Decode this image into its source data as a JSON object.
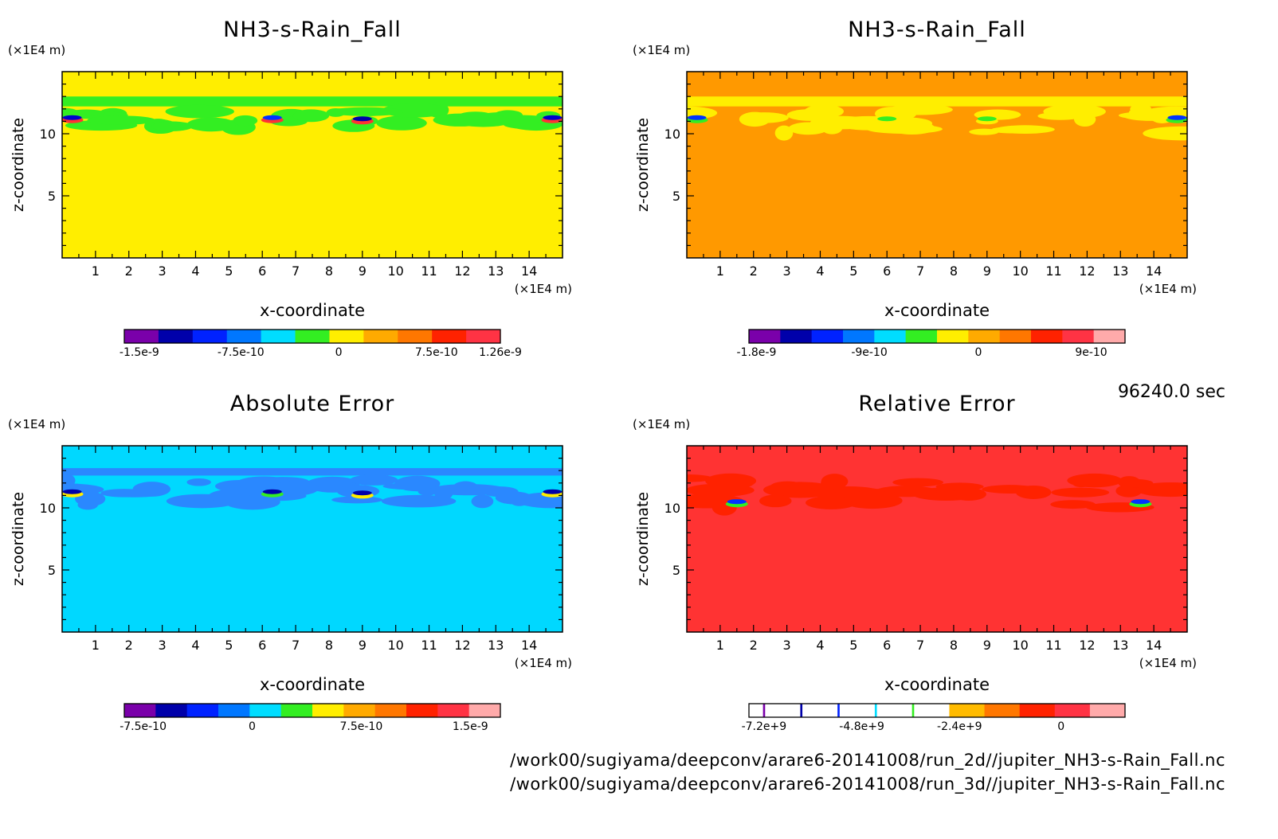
{
  "time_label": "96240.0 sec",
  "footer": {
    "path_2d": "/work00/sugiyama/deepconv/arare6-20141008/run_2d//jupiter_NH3-s-Rain_Fall.nc",
    "path_3d": "/work00/sugiyama/deepconv/arare6-20141008/run_3d//jupiter_NH3-s-Rain_Fall.nc"
  },
  "chart_data": [
    {
      "type": "heatmap",
      "title": "NH3-s-Rain_Fall",
      "xlabel": "x-coordinate",
      "ylabel": "z-coordinate",
      "x_unit": "(×1E4 m)",
      "y_unit": "(×1E4 m)",
      "xlim": [
        0,
        15
      ],
      "ylim": [
        0,
        15
      ],
      "x_ticks": [
        "1",
        "2",
        "3",
        "4",
        "5",
        "6",
        "7",
        "8",
        "9",
        "10",
        "11",
        "12",
        "13",
        "14"
      ],
      "y_ticks": [
        "5",
        "10"
      ],
      "background_color": "#ffee00",
      "bands": [
        {
          "z": [
            12.2,
            13.0
          ],
          "color": "#33ee22"
        }
      ],
      "patches_color": "#33ee22",
      "patches_z": [
        10.5,
        12.0
      ],
      "hotspots": [
        {
          "x": 0.3,
          "z": 11.3,
          "colors": [
            "#0000cc",
            "#ff3333"
          ]
        },
        {
          "x": 6.3,
          "z": 11.3,
          "colors": [
            "#0033ff",
            "#ff3333"
          ]
        },
        {
          "x": 9.0,
          "z": 11.2,
          "colors": [
            "#0000aa",
            "#ff3333"
          ]
        },
        {
          "x": 14.7,
          "z": 11.3,
          "colors": [
            "#0000cc",
            "#ff3333"
          ]
        }
      ],
      "colorbar": {
        "colors": [
          "#7a00aa",
          "#0000aa",
          "#0022ff",
          "#0077ff",
          "#00ddff",
          "#33ee22",
          "#ffee00",
          "#ffaa00",
          "#ff7700",
          "#ff2200",
          "#ff3344"
        ],
        "tick_labels": [
          "-1.5e-9",
          "-7.5e-10",
          "0",
          "7.5e-10",
          "1.26e-9"
        ],
        "tick_positions": [
          0.04,
          0.31,
          0.57,
          0.83,
          1.0
        ]
      }
    },
    {
      "type": "heatmap",
      "title": "NH3-s-Rain_Fall",
      "xlabel": "x-coordinate",
      "ylabel": "z-coordinate",
      "x_unit": "(×1E4 m)",
      "y_unit": "(×1E4 m)",
      "xlim": [
        0,
        15
      ],
      "ylim": [
        0,
        15
      ],
      "x_ticks": [
        "1",
        "2",
        "3",
        "4",
        "5",
        "6",
        "7",
        "8",
        "9",
        "10",
        "11",
        "12",
        "13",
        "14"
      ],
      "y_ticks": [
        "5",
        "10"
      ],
      "background_color": "#ff9900",
      "bands": [
        {
          "z": [
            12.2,
            13.0
          ],
          "color": "#ffee00"
        }
      ],
      "patches_color": "#ffee00",
      "patches_z": [
        10.0,
        12.0
      ],
      "hotspots": [
        {
          "x": 0.3,
          "z": 11.3,
          "colors": [
            "#0033ff",
            "#33ee22"
          ]
        },
        {
          "x": 6.0,
          "z": 11.2,
          "colors": [
            "#33ee22",
            "#ffee00"
          ]
        },
        {
          "x": 9.0,
          "z": 11.2,
          "colors": [
            "#33ee22",
            "#ffee00"
          ]
        },
        {
          "x": 14.7,
          "z": 11.3,
          "colors": [
            "#0033ff",
            "#33ee22"
          ]
        }
      ],
      "colorbar": {
        "colors": [
          "#7a00aa",
          "#0000aa",
          "#0022ff",
          "#0077ff",
          "#00ddff",
          "#33ee22",
          "#ffee00",
          "#ffaa00",
          "#ff7700",
          "#ff2200",
          "#ff3344",
          "#ffaaaa"
        ],
        "tick_labels": [
          "-1.8e-9",
          "-9e-10",
          "0",
          "9e-10"
        ],
        "tick_positions": [
          0.02,
          0.32,
          0.61,
          0.91
        ]
      }
    },
    {
      "type": "heatmap",
      "title": "Absolute Error",
      "xlabel": "x-coordinate",
      "ylabel": "z-coordinate",
      "x_unit": "(×1E4 m)",
      "y_unit": "(×1E4 m)",
      "xlim": [
        0,
        15
      ],
      "ylim": [
        0,
        15
      ],
      "x_ticks": [
        "1",
        "2",
        "3",
        "4",
        "5",
        "6",
        "7",
        "8",
        "9",
        "10",
        "11",
        "12",
        "13",
        "14"
      ],
      "y_ticks": [
        "5",
        "10"
      ],
      "background_color": "#00d8ff",
      "bands": [
        {
          "z": [
            12.6,
            13.2
          ],
          "color": "#2a88ff"
        }
      ],
      "patches_color": "#2a88ff",
      "patches_z": [
        10.0,
        12.4
      ],
      "hotspots": [
        {
          "x": 0.3,
          "z": 11.3,
          "colors": [
            "#0000aa",
            "#ffee00"
          ]
        },
        {
          "x": 6.3,
          "z": 11.3,
          "colors": [
            "#0000aa",
            "#33ee22"
          ]
        },
        {
          "x": 9.0,
          "z": 11.2,
          "colors": [
            "#0000aa",
            "#ffee00"
          ]
        },
        {
          "x": 14.7,
          "z": 11.3,
          "colors": [
            "#0000aa",
            "#ffee00"
          ]
        }
      ],
      "colorbar": {
        "colors": [
          "#7a00aa",
          "#0000aa",
          "#0022ff",
          "#0077ff",
          "#00ddff",
          "#33ee22",
          "#ffee00",
          "#ffaa00",
          "#ff7700",
          "#ff2200",
          "#ff3344",
          "#ffaaaa"
        ],
        "tick_labels": [
          "-7.5e-10",
          "0",
          "7.5e-10",
          "1.5e-9"
        ],
        "tick_positions": [
          0.05,
          0.34,
          0.63,
          0.92
        ]
      }
    },
    {
      "type": "heatmap",
      "title": "Relative Error",
      "xlabel": "x-coordinate",
      "ylabel": "z-coordinate",
      "x_unit": "(×1E4 m)",
      "y_unit": "(×1E4 m)",
      "xlim": [
        0,
        15
      ],
      "ylim": [
        0,
        15
      ],
      "x_ticks": [
        "1",
        "2",
        "3",
        "4",
        "5",
        "6",
        "7",
        "8",
        "9",
        "10",
        "11",
        "12",
        "13",
        "14"
      ],
      "y_ticks": [
        "5",
        "10"
      ],
      "background_color": "#ff3333",
      "bands": [],
      "patches_color": "#ff2200",
      "patches_z": [
        10.0,
        12.4
      ],
      "hotspots": [
        {
          "x": 1.5,
          "z": 10.5,
          "colors": [
            "#0033ff",
            "#33ee22"
          ]
        },
        {
          "x": 13.6,
          "z": 10.5,
          "colors": [
            "#0033ff",
            "#33ee22"
          ]
        }
      ],
      "colorbar": {
        "colors": [
          "#ffffff",
          "#7a00aa",
          "#ffffff",
          "#0000aa",
          "#ffffff",
          "#0022ff",
          "#ffffff",
          "#00ddff",
          "#ffffff",
          "#33ee22",
          "#ffffff",
          "#ffbb00",
          "#ff7700",
          "#ff2200",
          "#ff3344",
          "#ffaaaa"
        ],
        "segment_weights": [
          1,
          0.15,
          2.5,
          0.15,
          2.5,
          0.15,
          2.5,
          0.15,
          2.5,
          0.15,
          2.5,
          2.5,
          2.5,
          2.5,
          2.5,
          2.5
        ],
        "tick_labels": [
          "-7.2e+9",
          "-4.8e+9",
          "-2.4e+9",
          "0"
        ],
        "tick_positions": [
          0.04,
          0.3,
          0.56,
          0.83
        ]
      }
    }
  ]
}
